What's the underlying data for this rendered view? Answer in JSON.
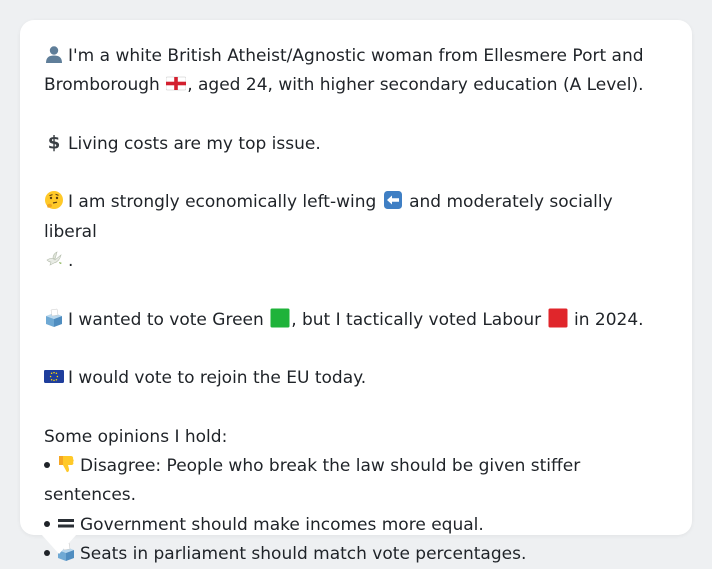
{
  "profile": {
    "intro_text": "I'm a white British Atheist/Agnostic woman from Ellesmere Port and Bromborough",
    "intro_rest": ", aged 24, with higher secondary education (A Level).",
    "top_issue": "Living costs are my top issue.",
    "ideology_a": "I am strongly economically left-wing",
    "ideology_b": "and moderately socially liberal",
    "ideology_end": ".",
    "vote_a": "I wanted to vote Green",
    "vote_b": ", but I tactically voted Labour",
    "vote_c": "in 2024.",
    "eu": "I would vote to rejoin the EU today.",
    "opinions_heading": "Some opinions I hold:",
    "opinions": [
      {
        "text": "Disagree: People who break the law should be given stiffer sentences.",
        "icon": "thumbs-down-icon"
      },
      {
        "text": "Government should make incomes more equal.",
        "icon": "equals-icon"
      },
      {
        "text": "Seats in parliament should match vote percentages.",
        "icon": "ballot-box-icon"
      }
    ]
  },
  "colors": {
    "green": "#1fb33a",
    "labour": "#e0262b",
    "eu_blue": "#1f3e9c",
    "eu_gold": "#ffd800",
    "text": "#1f2328"
  }
}
